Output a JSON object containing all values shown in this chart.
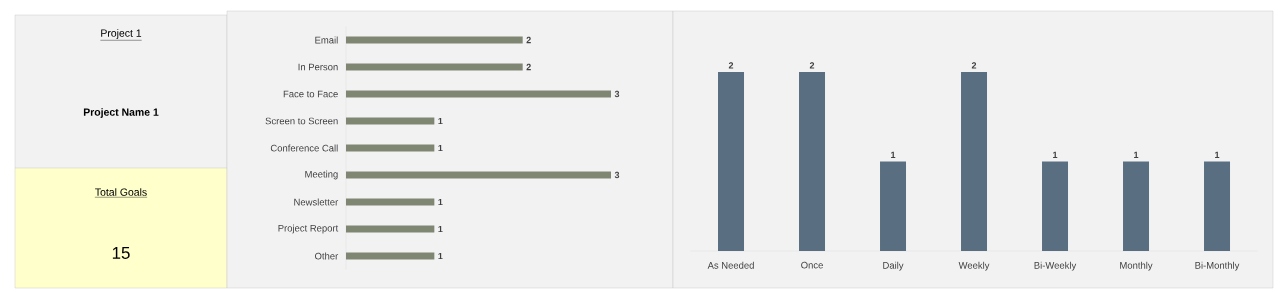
{
  "chart_data": [
    {
      "type": "other",
      "title": "Project 1",
      "subtitle": "Project Name 1",
      "annotations": [
        "Total Goals",
        "15"
      ]
    },
    {
      "type": "bar",
      "orientation": "horizontal",
      "categories": [
        "Email",
        "In Person",
        "Face to Face",
        "Screen to Screen",
        "Conference Call",
        "Meeting",
        "Newsletter",
        "Project Report",
        "Other"
      ],
      "values": [
        2,
        2,
        3,
        1,
        1,
        3,
        1,
        1,
        1
      ],
      "color": "#7f8672",
      "data_labels": true
    },
    {
      "type": "bar",
      "categories": [
        "As Needed",
        "Once",
        "Daily",
        "Weekly",
        "Bi-Weekly",
        "Monthly",
        "Bi-Monthly"
      ],
      "values": [
        2,
        2,
        1,
        2,
        1,
        1,
        1
      ],
      "color": "#5a6e81",
      "data_labels": true
    }
  ]
}
